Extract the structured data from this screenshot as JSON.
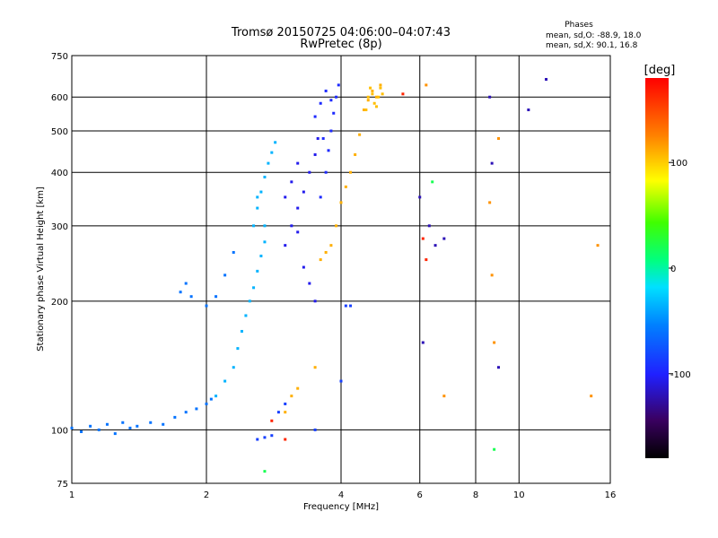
{
  "chart_data": {
    "type": "scatter",
    "title": "Tromsø 20150725 04:06:00–04:07:43",
    "subtitle": "RwPretec (8p)",
    "xlabel": "Frequency [MHz]",
    "ylabel": "Stationary phase Virtual Height [km]",
    "x_scale": "log",
    "y_scale": "log",
    "xlim": [
      1,
      16
    ],
    "ylim": [
      75,
      750
    ],
    "x_ticks": [
      1,
      2,
      4,
      6,
      8,
      10,
      16
    ],
    "x_tick_labels": [
      "1",
      "2",
      "4",
      "6",
      "8",
      "10",
      "16"
    ],
    "y_ticks": [
      75,
      100,
      200,
      300,
      400,
      500,
      600,
      750
    ],
    "y_tick_labels": [
      "75",
      "100",
      "200",
      "300",
      "400",
      "500",
      "600",
      "750"
    ],
    "grid": true,
    "colorbar": {
      "label": "[deg]",
      "range": [
        -180,
        180
      ],
      "ticks": [
        100,
        0,
        -100
      ],
      "tick_labels": [
        "100",
        "0",
        "-100"
      ]
    },
    "phase_stats": {
      "title": "Phases",
      "o_line": "mean, sd,O: -88.9, 18.0",
      "x_line": "mean, sd,X:  90.1, 16.8"
    },
    "series": [
      {
        "phase_deg": -60,
        "points": [
          [
            1.0,
            101
          ],
          [
            1.05,
            99
          ],
          [
            1.1,
            102
          ],
          [
            1.15,
            100
          ],
          [
            1.2,
            103
          ],
          [
            1.25,
            98
          ],
          [
            1.3,
            104
          ],
          [
            1.35,
            101
          ],
          [
            1.4,
            102
          ],
          [
            1.5,
            104
          ],
          [
            1.6,
            103
          ],
          [
            1.7,
            107
          ],
          [
            1.8,
            110
          ],
          [
            1.9,
            112
          ],
          [
            2.0,
            115
          ],
          [
            2.05,
            118
          ],
          [
            1.75,
            210
          ],
          [
            1.8,
            220
          ],
          [
            1.85,
            205
          ],
          [
            2.0,
            195
          ],
          [
            2.1,
            205
          ],
          [
            2.2,
            230
          ],
          [
            2.3,
            260
          ]
        ]
      },
      {
        "phase_deg": -35,
        "points": [
          [
            2.1,
            120
          ],
          [
            2.2,
            130
          ],
          [
            2.3,
            140
          ],
          [
            2.35,
            155
          ],
          [
            2.4,
            170
          ],
          [
            2.45,
            185
          ],
          [
            2.5,
            200
          ],
          [
            2.55,
            215
          ],
          [
            2.6,
            235
          ],
          [
            2.65,
            255
          ],
          [
            2.7,
            275
          ],
          [
            2.55,
            300
          ],
          [
            2.6,
            330
          ],
          [
            2.65,
            360
          ],
          [
            2.7,
            390
          ],
          [
            2.75,
            420
          ],
          [
            2.8,
            445
          ],
          [
            2.85,
            470
          ],
          [
            2.6,
            350
          ],
          [
            2.7,
            300
          ]
        ]
      },
      {
        "phase_deg": -105,
        "points": [
          [
            3.0,
            270
          ],
          [
            3.1,
            300
          ],
          [
            3.2,
            330
          ],
          [
            3.3,
            360
          ],
          [
            3.4,
            400
          ],
          [
            3.5,
            440
          ],
          [
            3.55,
            480
          ],
          [
            3.3,
            240
          ],
          [
            3.4,
            220
          ],
          [
            3.5,
            200
          ],
          [
            3.2,
            290
          ],
          [
            3.0,
            350
          ],
          [
            3.1,
            380
          ],
          [
            3.2,
            420
          ]
        ]
      },
      {
        "phase_deg": -95,
        "points": [
          [
            3.6,
            350
          ],
          [
            3.7,
            400
          ],
          [
            3.75,
            450
          ],
          [
            3.8,
            500
          ],
          [
            3.85,
            550
          ],
          [
            3.9,
            600
          ],
          [
            3.95,
            640
          ],
          [
            3.7,
            620
          ],
          [
            3.6,
            580
          ],
          [
            3.5,
            540
          ],
          [
            3.8,
            590
          ],
          [
            3.65,
            480
          ]
        ]
      },
      {
        "phase_deg": -85,
        "points": [
          [
            2.6,
            95
          ],
          [
            2.7,
            96
          ],
          [
            2.8,
            97
          ],
          [
            2.9,
            110
          ],
          [
            3.0,
            115
          ],
          [
            3.5,
            100
          ],
          [
            4.0,
            130
          ],
          [
            4.1,
            195
          ],
          [
            4.2,
            195
          ]
        ]
      },
      {
        "phase_deg": 110,
        "points": [
          [
            3.0,
            110
          ],
          [
            3.1,
            120
          ],
          [
            3.2,
            125
          ],
          [
            3.5,
            140
          ],
          [
            3.6,
            250
          ],
          [
            3.7,
            260
          ],
          [
            3.8,
            270
          ],
          [
            3.9,
            300
          ],
          [
            4.0,
            340
          ],
          [
            4.1,
            370
          ],
          [
            4.2,
            400
          ],
          [
            4.3,
            440
          ],
          [
            4.4,
            490
          ],
          [
            4.5,
            560
          ],
          [
            4.6,
            590
          ],
          [
            4.7,
            620
          ],
          [
            4.8,
            600
          ],
          [
            4.9,
            640
          ]
        ]
      },
      {
        "phase_deg": 105,
        "points": [
          [
            4.55,
            560
          ],
          [
            4.6,
            600
          ],
          [
            4.65,
            630
          ],
          [
            4.7,
            610
          ],
          [
            4.75,
            580
          ],
          [
            4.8,
            570
          ],
          [
            4.85,
            600
          ],
          [
            4.9,
            630
          ],
          [
            4.95,
            610
          ]
        ]
      },
      {
        "phase_deg": -120,
        "points": [
          [
            6.0,
            350
          ],
          [
            6.3,
            300
          ],
          [
            6.5,
            270
          ],
          [
            6.8,
            280
          ],
          [
            8.6,
            600
          ],
          [
            8.7,
            420
          ],
          [
            10.5,
            560
          ],
          [
            11.5,
            660
          ],
          [
            9.0,
            140
          ],
          [
            6.1,
            160
          ]
        ]
      },
      {
        "phase_deg": 120,
        "points": [
          [
            6.2,
            640
          ],
          [
            8.6,
            340
          ],
          [
            8.7,
            230
          ],
          [
            8.8,
            160
          ],
          [
            9.0,
            480
          ],
          [
            15.0,
            270
          ],
          [
            14.5,
            120
          ],
          [
            6.8,
            120
          ]
        ]
      },
      {
        "phase_deg": 165,
        "points": [
          [
            5.5,
            610
          ],
          [
            6.1,
            280
          ],
          [
            6.2,
            250
          ],
          [
            2.8,
            105
          ],
          [
            3.0,
            95
          ]
        ]
      },
      {
        "phase_deg": 20,
        "points": [
          [
            8.8,
            90
          ],
          [
            6.4,
            380
          ],
          [
            2.7,
            80
          ]
        ]
      }
    ]
  }
}
